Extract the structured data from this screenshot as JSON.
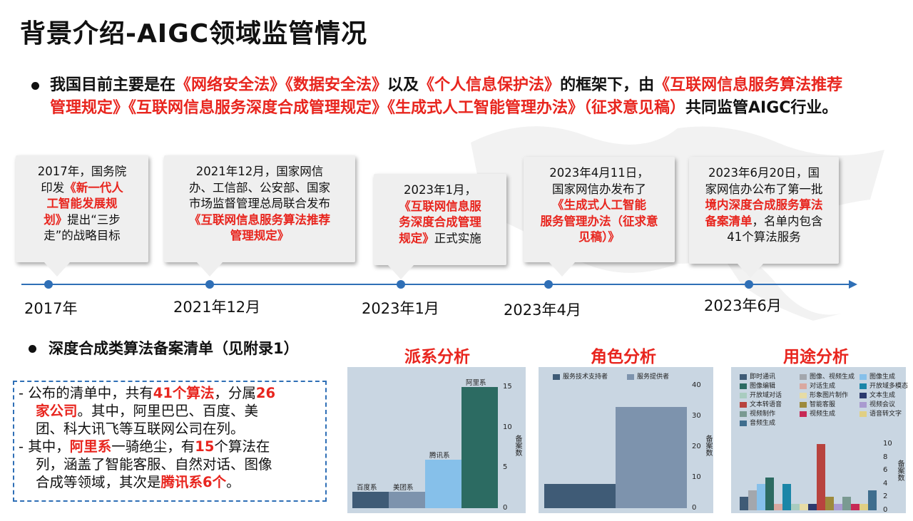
{
  "title": "背景介绍-AIGC领域监管情况",
  "intro": {
    "p1": "我国目前主要是在",
    "law1": "《网络安全法》《数据安全法》",
    "p2": "以及",
    "law2": "《个人信息保护法》",
    "p3": "的框架下，由",
    "law3": "《互联网信息服务算法推荐管理规定》《互联网信息服务深度合成管理规定》《生成式人工智能管理办法》（征求意见稿）",
    "p4": "共同监管AIGC行业。"
  },
  "timeline": [
    {
      "year": "2017年",
      "lines": [
        {
          "t": "2017年，国务院"
        },
        {
          "t": "印发"
        },
        {
          "r": "《新一代人"
        },
        {
          "r": "工智能发展规"
        },
        {
          "r": "划》"
        },
        {
          "t": "提出“三步"
        },
        {
          "t": "走”的战略目标"
        }
      ]
    },
    {
      "year": "2021年12月",
      "lines": [
        {
          "t": "2021年12月，国家网信"
        },
        {
          "t": "办、工信部、公安部、国家"
        },
        {
          "t": "市场监督管理总局联合发布"
        },
        {
          "r": "《互联网信息服务算法推荐"
        },
        {
          "r": "管理规定》"
        }
      ]
    },
    {
      "year": "2023年1月",
      "lines": [
        {
          "t": "2023年1月，"
        },
        {
          "r": "《互联网信息服"
        },
        {
          "r": "务深度合成管理"
        },
        {
          "r": "规定》"
        },
        {
          "t": "正式实施"
        }
      ]
    },
    {
      "year": "2023年4月",
      "lines": [
        {
          "t": "2023年4月11日，"
        },
        {
          "t": "国家网信办发布了"
        },
        {
          "r": "《生成式人工智能"
        },
        {
          "r": "服务管理办法（征求意"
        },
        {
          "r": "见稿）》"
        }
      ]
    },
    {
      "year": "2023年6月",
      "lines": [
        {
          "t": "2023年6月20日，国"
        },
        {
          "t": "家网信办公布了第一批"
        },
        {
          "r": "境内深度合成服务算法"
        },
        {
          "r": "备案清单"
        },
        {
          "t": "，名单内包含"
        },
        {
          "t": "41个算法服务"
        }
      ]
    }
  ],
  "section2": "深度合成类算法备案清单（见附录1）",
  "box_lines": [
    [
      {
        "t": "- 公布的清单中，共有"
      },
      {
        "r": "41个算法"
      },
      {
        "t": "，分属"
      },
      {
        "r": "26"
      }
    ],
    [
      {
        "r": "家公司"
      },
      {
        "t": "。其中，阿里巴巴、百度、美"
      }
    ],
    [
      {
        "t": "团、科大讯飞等互联网公司在列。"
      }
    ],
    [
      {
        "t": "- 其中，"
      },
      {
        "r": "阿里系"
      },
      {
        "t": "一骑绝尘，有"
      },
      {
        "r": "15"
      },
      {
        "t": "个算法在"
      }
    ],
    [
      {
        "t": "列，涵盖了智能客服、自然对话、图像"
      }
    ],
    [
      {
        "t": "合成等领域，其次是"
      },
      {
        "r": "腾讯系6个"
      },
      {
        "t": "。"
      }
    ]
  ],
  "chart_data": [
    {
      "type": "bar",
      "title": "派系分析",
      "categories": [
        "百度系",
        "美团系",
        "腾讯系",
        "阿里系"
      ],
      "values": [
        2,
        2,
        6,
        15
      ],
      "colors": [
        "#3f5b76",
        "#7d93ad",
        "#86c0ea",
        "#2c6b62"
      ],
      "ylabel": "备案数",
      "ylim": [
        0,
        16
      ],
      "yticks": [
        "0",
        "5",
        "10",
        "15"
      ]
    },
    {
      "type": "bar",
      "title": "角色分析",
      "legend": [
        "服务技术支持者",
        "服务提供者"
      ],
      "values": [
        8,
        33
      ],
      "colors": [
        "#3f5b76",
        "#7d93ad"
      ],
      "ylabel": "备案数",
      "ylim": [
        0,
        41
      ],
      "yticks": [
        "0",
        "10",
        "20",
        "30",
        "40"
      ]
    },
    {
      "type": "bar",
      "title": "用途分析",
      "legend": [
        "即时通讯",
        "图像、视频生成",
        "图像生成",
        "图像编辑",
        "对话生成",
        "开放域多模态",
        "开放域对话",
        "形象图片制作",
        "文本生成",
        "文本转语音",
        "智能客服",
        "视频会议",
        "视频制作",
        "视频生成",
        "语音转文字",
        "音频生成"
      ],
      "values": [
        2,
        3,
        4,
        5,
        1,
        4,
        1,
        1,
        1,
        10,
        2,
        1,
        2,
        1,
        1,
        3
      ],
      "colors": [
        "#3f5b76",
        "#a3a7ad",
        "#86c0ea",
        "#2c6b62",
        "#d9a8a0",
        "#1b86a8",
        "#a9ccc0",
        "#e6dca6",
        "#2c3a6e",
        "#b8433e",
        "#9d8a3c",
        "#a99ad0",
        "#7a9a92",
        "#c72a56",
        "#e0cf84",
        "#3f6e8e"
      ],
      "ylabel": "备案数",
      "ylim": [
        0,
        11
      ],
      "yticks": [
        "0",
        "2",
        "4",
        "6",
        "8",
        "10"
      ]
    }
  ]
}
